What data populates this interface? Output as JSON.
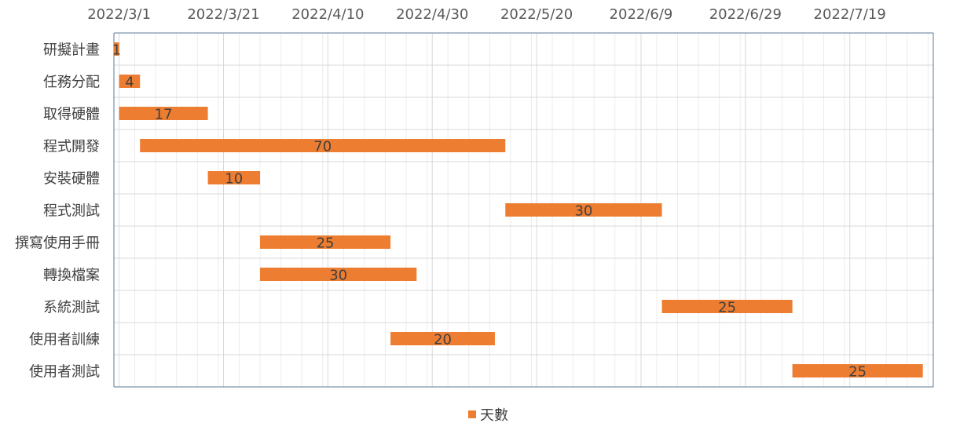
{
  "chart_data": {
    "type": "bar",
    "orientation": "horizontal",
    "style": "gantt",
    "title": "",
    "x_axis": {
      "type": "date",
      "position": "top",
      "min": "2022-02-28",
      "max": "2022-08-04",
      "tick_step_days": 20,
      "minor_step_days": 4,
      "tick_labels": [
        "2022/3/1",
        "2022/3/21",
        "2022/4/10",
        "2022/4/30",
        "2022/5/20",
        "2022/6/9",
        "2022/6/29",
        "2022/7/19"
      ]
    },
    "grid": true,
    "legend": {
      "position": "bottom",
      "entries": [
        "天數"
      ]
    },
    "series": [
      {
        "name": "天數",
        "color": "#ED7D31",
        "tasks": [
          {
            "task": "研擬計畫",
            "start": "2022-02-28",
            "days": 1
          },
          {
            "task": "任務分配",
            "start": "2022-03-01",
            "days": 4
          },
          {
            "task": "取得硬體",
            "start": "2022-03-01",
            "days": 17
          },
          {
            "task": "程式開發",
            "start": "2022-03-05",
            "days": 70
          },
          {
            "task": "安裝硬體",
            "start": "2022-03-18",
            "days": 10
          },
          {
            "task": "程式測試",
            "start": "2022-05-14",
            "days": 30
          },
          {
            "task": "撰寫使用手冊",
            "start": "2022-03-28",
            "days": 25
          },
          {
            "task": "轉換檔案",
            "start": "2022-03-28",
            "days": 30
          },
          {
            "task": "系統測試",
            "start": "2022-06-13",
            "days": 25
          },
          {
            "task": "使用者訓練",
            "start": "2022-04-22",
            "days": 20
          },
          {
            "task": "使用者測試",
            "start": "2022-07-08",
            "days": 25
          }
        ]
      }
    ]
  }
}
